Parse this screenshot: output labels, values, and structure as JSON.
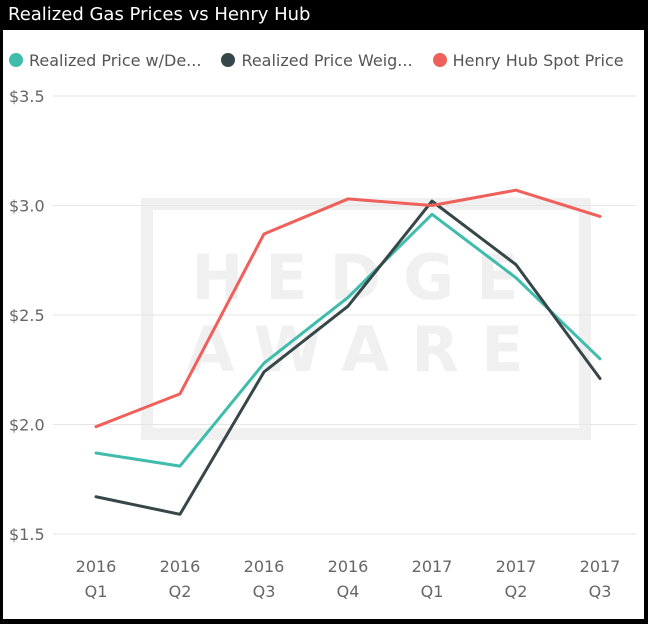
{
  "header": {
    "title": "Realized Gas Prices vs Henry Hub"
  },
  "watermark": {
    "line1": "HEDGE",
    "line2": "AWARE"
  },
  "chart_data": {
    "type": "line",
    "title": "Realized Gas Prices vs Henry Hub",
    "categories": [
      [
        "2016",
        "Q1"
      ],
      [
        "2016",
        "Q2"
      ],
      [
        "2016",
        "Q3"
      ],
      [
        "2016",
        "Q4"
      ],
      [
        "2017",
        "Q1"
      ],
      [
        "2017",
        "Q2"
      ],
      [
        "2017",
        "Q3"
      ]
    ],
    "y_tick_values": [
      1.5,
      2.0,
      2.5,
      3.0,
      3.5
    ],
    "y_tick_labels": [
      "$1.5",
      "$2.0",
      "$2.5",
      "$3.0",
      "$3.5"
    ],
    "ylim": [
      1.5,
      3.5
    ],
    "grid": true,
    "legend_position": "top-left",
    "series": [
      {
        "name": "Realized Price w/De...",
        "color": "#3fbcac",
        "values": [
          1.87,
          1.81,
          2.28,
          2.58,
          2.96,
          2.67,
          2.3
        ]
      },
      {
        "name": "Realized Price Weig...",
        "color": "#374649",
        "values": [
          1.67,
          1.59,
          2.24,
          2.54,
          3.02,
          2.73,
          2.21
        ]
      },
      {
        "name": "Henry Hub Spot Price",
        "color": "#f0605a",
        "values": [
          1.99,
          2.14,
          2.87,
          3.03,
          3.0,
          3.07,
          2.95
        ]
      }
    ]
  }
}
